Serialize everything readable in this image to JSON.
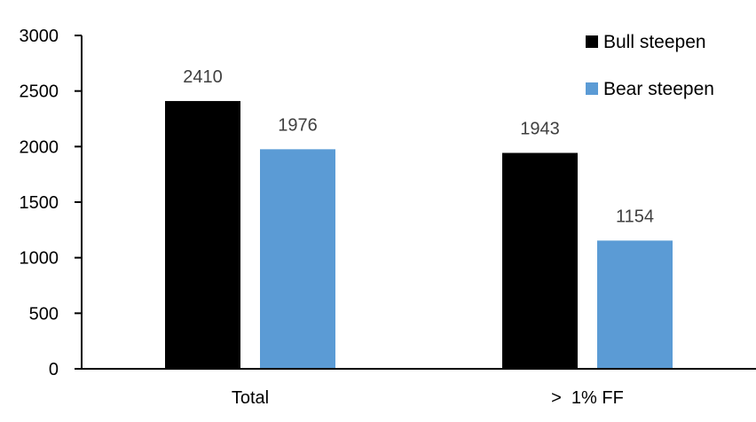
{
  "chart_data": {
    "type": "bar",
    "title": "",
    "xlabel": "",
    "ylabel": "",
    "categories": [
      "Total",
      ">  1% FF"
    ],
    "series": [
      {
        "name": "Bull steepen",
        "values": [
          2410,
          1943
        ],
        "color": "#000000"
      },
      {
        "name": "Bear steepen",
        "values": [
          1976,
          1154
        ],
        "color": "#5B9BD5"
      }
    ],
    "ylim": [
      0,
      3000
    ],
    "yticks": [
      0,
      500,
      1000,
      1500,
      2000,
      2500,
      3000
    ],
    "grid": false,
    "legend": "top-right",
    "data_labels": true,
    "data_label_color": "#404040"
  }
}
